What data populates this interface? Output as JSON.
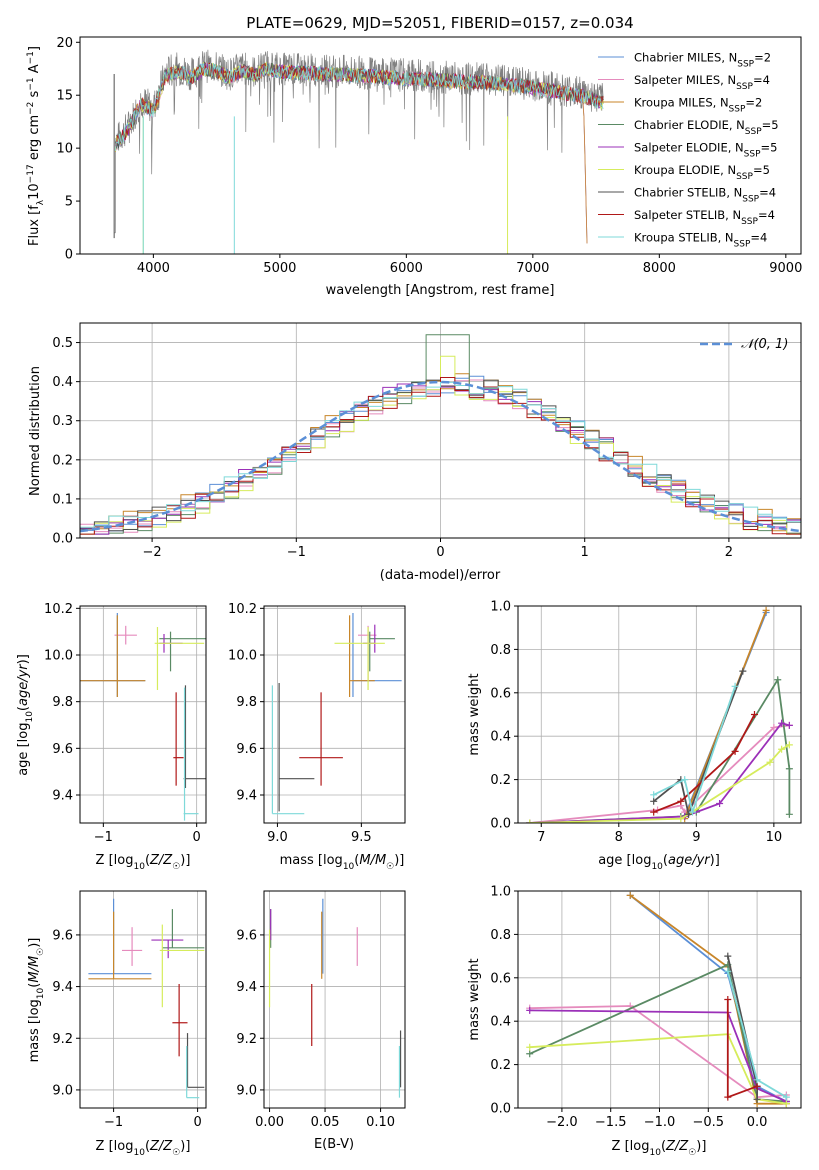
{
  "figure": {
    "title": "PLATE=0629, MJD=52051, FIBERID=0157, z=0.034"
  },
  "colors": {
    "Chabrier MILES": "#5b8fd6",
    "Salpeter MILES": "#e58bbd",
    "Kroupa MILES": "#c8862a",
    "Chabrier ELODIE": "#5a8a64",
    "Salpeter ELODIE": "#9b30b8",
    "Kroupa ELODIE": "#d6ec5c",
    "Chabrier STELIB": "#505050",
    "Salpeter STELIB": "#b01818",
    "Kroupa STELIB": "#7fd9d9"
  },
  "chart_data": [
    {
      "id": "spectrum",
      "type": "line",
      "title": "PLATE=0629, MJD=52051, FIBERID=0157, z=0.034",
      "xlabel": "wavelength [Angstrom, rest frame]",
      "ylabel": "Flux [f_λ 10^-17 erg cm^-2 s^-1 A^-1]",
      "xlim": [
        3420,
        9120
      ],
      "ylim": [
        0,
        20.5
      ],
      "xticks": [
        4000,
        5000,
        6000,
        7000,
        8000,
        9000
      ],
      "yticks": [
        0,
        5,
        10,
        15,
        20
      ],
      "grid": false,
      "legend": "right",
      "legend_entries": [
        "Chabrier MILES, N_SSP=2",
        "Salpeter MILES, N_SSP=4",
        "Kroupa MILES, N_SSP=2",
        "Chabrier ELODIE, N_SSP=5",
        "Salpeter ELODIE, N_SSP=5",
        "Kroupa ELODIE, N_SSP=5",
        "Chabrier STELIB, N_SSP=4",
        "Salpeter STELIB, N_SSP=4",
        "Kroupa STELIB, N_SSP=4"
      ],
      "data_continuum": {
        "x": [
          3690,
          3800,
          3900,
          4000,
          4100,
          4200,
          4300,
          4400,
          4500,
          4600,
          4700,
          4800,
          4900,
          5000,
          5200,
          5400,
          5600,
          5800,
          6000,
          6200,
          6400,
          6600,
          6800,
          7000,
          7200,
          7400,
          7550,
          7600
        ],
        "y": [
          10.5,
          12.0,
          14.5,
          13.8,
          17.2,
          17.5,
          17.0,
          17.8,
          17.6,
          17.0,
          17.6,
          17.2,
          17.8,
          17.5,
          17.4,
          17.3,
          17.2,
          17.0,
          16.9,
          16.8,
          16.6,
          16.5,
          16.3,
          16.0,
          15.6,
          15.2,
          14.6,
          14.0
        ]
      },
      "model_cutoff": {
        "x": [
          7400,
          7430
        ],
        "y": [
          15.0,
          0
        ]
      }
    },
    {
      "id": "residual-histogram",
      "type": "area",
      "xlabel": "(data-model)/error",
      "ylabel": "Normed distribution",
      "xlim": [
        -2.5,
        2.5
      ],
      "ylim": [
        0,
        0.55
      ],
      "xticks": [
        -2,
        -1,
        0,
        1,
        2
      ],
      "yticks": [
        0.0,
        0.1,
        0.2,
        0.3,
        0.4,
        0.5
      ],
      "grid": true,
      "legend": "top-right",
      "legend_entries": [
        "𝒩(0, 1)"
      ],
      "bin_width": 0.1,
      "bin_start": -2.5,
      "histograms": [
        {
          "series": "Chabrier MILES",
          "offset": 0.004
        },
        {
          "series": "Salpeter MILES",
          "offset": -0.006
        },
        {
          "series": "Kroupa MILES",
          "offset": 0.008
        },
        {
          "series": "Chabrier ELODIE",
          "offset": -0.003
        },
        {
          "series": "Salpeter ELODIE",
          "offset": 0.006
        },
        {
          "series": "Kroupa ELODIE",
          "offset": -0.008
        },
        {
          "series": "Chabrier STELIB",
          "offset": 0.002
        },
        {
          "series": "Salpeter STELIB",
          "offset": -0.004
        },
        {
          "series": "Kroupa STELIB",
          "offset": 0.005
        }
      ],
      "gaussian": {
        "mean": 0,
        "sigma": 1
      }
    },
    {
      "id": "age-vs-Z",
      "type": "scatter",
      "xlabel": "Z [log10(Z/Z☉)]",
      "ylabel": "age [log10(age/yr)]",
      "xlim": [
        -1.25,
        0.1
      ],
      "ylim": [
        9.28,
        10.21
      ],
      "xticks": [
        -1,
        0
      ],
      "yticks": [
        9.4,
        9.6,
        9.8,
        10.0,
        10.2
      ],
      "grid": true,
      "points": [
        {
          "series": "Chabrier MILES",
          "x": -0.85,
          "y": 9.89,
          "xerr": [
            0.45,
            0.3
          ],
          "yerr": [
            0.07,
            0.29
          ]
        },
        {
          "series": "Salpeter MILES",
          "x": -0.76,
          "y": 10.085,
          "xerr": [
            0.12,
            0.12
          ],
          "yerr": [
            0.04,
            0.04
          ]
        },
        {
          "series": "Kroupa MILES",
          "x": -0.85,
          "y": 9.89,
          "xerr": [
            0.45,
            0.3
          ],
          "yerr": [
            0.07,
            0.28
          ]
        },
        {
          "series": "Chabrier ELODIE",
          "x": -0.28,
          "y": 10.07,
          "xerr": [
            0.12,
            0.38
          ],
          "yerr": [
            0.14,
            0.03
          ]
        },
        {
          "series": "Salpeter ELODIE",
          "x": -0.35,
          "y": 10.05,
          "xerr": [
            0.05,
            0.2
          ],
          "yerr": [
            0.04,
            0.04
          ]
        },
        {
          "series": "Kroupa ELODIE",
          "x": -0.42,
          "y": 10.05,
          "xerr": [
            0.03,
            0.5
          ],
          "yerr": [
            0.2,
            0.07
          ]
        },
        {
          "series": "Chabrier STELIB",
          "x": -0.12,
          "y": 9.47,
          "xerr": [
            0.02,
            0.28
          ],
          "yerr": [
            0.04,
            0.4
          ]
        },
        {
          "series": "Salpeter STELIB",
          "x": -0.22,
          "y": 9.56,
          "xerr": [
            0.03,
            0.08
          ],
          "yerr": [
            0.12,
            0.28
          ]
        },
        {
          "series": "Kroupa STELIB",
          "x": -0.13,
          "y": 9.32,
          "xerr": [
            0.01,
            0.15
          ],
          "yerr": [
            0.03,
            0.54
          ]
        }
      ]
    },
    {
      "id": "age-vs-mass",
      "type": "scatter",
      "xlabel": "mass [log10(M/M☉)]",
      "ylabel": "",
      "xlim": [
        8.92,
        9.76
      ],
      "ylim": [
        9.28,
        10.21
      ],
      "xticks": [
        9.0,
        9.5
      ],
      "yticks": [
        9.4,
        9.6,
        9.8,
        10.0,
        10.2
      ],
      "grid": true,
      "points": [
        {
          "series": "Chabrier MILES",
          "x": 9.45,
          "y": 9.89,
          "xerr": [
            0.0,
            0.29
          ],
          "yerr": [
            0.07,
            0.29
          ]
        },
        {
          "series": "Salpeter MILES",
          "x": 9.54,
          "y": 10.085,
          "xerr": [
            0.06,
            0.05
          ],
          "yerr": [
            0.2,
            0.04
          ]
        },
        {
          "series": "Kroupa MILES",
          "x": 9.43,
          "y": 9.89,
          "xerr": [
            0.0,
            0.15
          ],
          "yerr": [
            0.07,
            0.28
          ]
        },
        {
          "series": "Chabrier ELODIE",
          "x": 9.55,
          "y": 10.07,
          "xerr": [
            0.0,
            0.15
          ],
          "yerr": [
            0.14,
            0.03
          ]
        },
        {
          "series": "Salpeter ELODIE",
          "x": 9.58,
          "y": 10.05,
          "xerr": [
            0.07,
            0.0
          ],
          "yerr": [
            0.04,
            0.08
          ]
        },
        {
          "series": "Kroupa ELODIE",
          "x": 9.54,
          "y": 10.05,
          "xerr": [
            0.2,
            0.1
          ],
          "yerr": [
            0.2,
            0.07
          ]
        },
        {
          "series": "Chabrier STELIB",
          "x": 9.01,
          "y": 9.47,
          "xerr": [
            0.0,
            0.21
          ],
          "yerr": [
            0.14,
            0.41
          ]
        },
        {
          "series": "Salpeter STELIB",
          "x": 9.26,
          "y": 9.56,
          "xerr": [
            0.13,
            0.13
          ],
          "yerr": [
            0.12,
            0.28
          ]
        },
        {
          "series": "Kroupa STELIB",
          "x": 8.97,
          "y": 9.32,
          "xerr": [
            0.0,
            0.19
          ],
          "yerr": [
            0.0,
            0.55
          ]
        }
      ]
    },
    {
      "id": "massweight-vs-age",
      "type": "line",
      "xlabel": "age [log10(age/yr)]",
      "ylabel": "mass weight",
      "xlim": [
        6.7,
        10.35
      ],
      "ylim": [
        0,
        1.0
      ],
      "xticks": [
        7,
        8,
        9,
        10
      ],
      "yticks": [
        0.0,
        0.2,
        0.4,
        0.6,
        0.8,
        1.0
      ],
      "grid": true,
      "series": [
        {
          "name": "Chabrier MILES",
          "x": [
            8.85,
            9.9
          ],
          "y": [
            0.03,
            0.97
          ]
        },
        {
          "name": "Salpeter MILES",
          "x": [
            6.85,
            8.5,
            8.8,
            8.85,
            10.0,
            10.2
          ],
          "y": [
            0.0,
            0.06,
            0.08,
            0.05,
            0.44,
            0.45
          ]
        },
        {
          "name": "Kroupa MILES",
          "x": [
            8.85,
            9.9
          ],
          "y": [
            0.02,
            0.98
          ]
        },
        {
          "name": "Chabrier ELODIE",
          "x": [
            6.85,
            8.8,
            9.0,
            10.05,
            10.2,
            10.2
          ],
          "y": [
            0.0,
            0.03,
            0.05,
            0.66,
            0.25,
            0.04
          ]
        },
        {
          "name": "Salpeter ELODIE",
          "x": [
            6.85,
            8.85,
            9.3,
            10.1,
            10.2
          ],
          "y": [
            0.0,
            0.03,
            0.09,
            0.46,
            0.45
          ]
        },
        {
          "name": "Kroupa ELODIE",
          "x": [
            6.85,
            8.8,
            8.9,
            9.95,
            10.1,
            10.2
          ],
          "y": [
            0.0,
            0.02,
            0.04,
            0.28,
            0.34,
            0.36
          ]
        },
        {
          "name": "Chabrier STELIB",
          "x": [
            8.45,
            8.8,
            8.9,
            9.6
          ],
          "y": [
            0.1,
            0.2,
            0.04,
            0.7
          ]
        },
        {
          "name": "Salpeter STELIB",
          "x": [
            8.45,
            8.8,
            9.5,
            9.75
          ],
          "y": [
            0.05,
            0.1,
            0.33,
            0.5
          ]
        },
        {
          "name": "Kroupa STELIB",
          "x": [
            8.45,
            8.85,
            8.95,
            9.5
          ],
          "y": [
            0.13,
            0.2,
            0.05,
            0.63
          ]
        }
      ]
    },
    {
      "id": "mass-vs-Z",
      "type": "scatter",
      "xlabel": "Z [log10(Z/Z☉)]",
      "ylabel": "mass [log10(M/M☉)]",
      "xlim": [
        -1.4,
        0.1
      ],
      "ylim": [
        8.93,
        9.77
      ],
      "xticks": [
        -1,
        0
      ],
      "yticks": [
        9.0,
        9.2,
        9.4,
        9.6
      ],
      "grid": true,
      "points": [
        {
          "series": "Chabrier MILES",
          "x": -1.0,
          "y": 9.45,
          "xerr": [
            0.3,
            0.45
          ],
          "yerr": [
            0.0,
            0.29
          ]
        },
        {
          "series": "Salpeter MILES",
          "x": -0.78,
          "y": 9.54,
          "xerr": [
            0.12,
            0.12
          ],
          "yerr": [
            0.06,
            0.09
          ]
        },
        {
          "series": "Kroupa MILES",
          "x": -1.0,
          "y": 9.43,
          "xerr": [
            0.3,
            0.45
          ],
          "yerr": [
            0.0,
            0.26
          ]
        },
        {
          "series": "Chabrier ELODIE",
          "x": -0.3,
          "y": 9.55,
          "xerr": [
            0.12,
            0.38
          ],
          "yerr": [
            0.0,
            0.15
          ]
        },
        {
          "series": "Salpeter ELODIE",
          "x": -0.35,
          "y": 9.58,
          "xerr": [
            0.2,
            0.18
          ],
          "yerr": [
            0.07,
            0.0
          ]
        },
        {
          "series": "Kroupa ELODIE",
          "x": -0.42,
          "y": 9.54,
          "xerr": [
            0.03,
            0.5
          ],
          "yerr": [
            0.22,
            0.1
          ]
        },
        {
          "series": "Chabrier STELIB",
          "x": -0.12,
          "y": 9.01,
          "xerr": [
            0.0,
            0.2
          ],
          "yerr": [
            0.0,
            0.21
          ]
        },
        {
          "series": "Salpeter STELIB",
          "x": -0.22,
          "y": 9.26,
          "xerr": [
            0.08,
            0.1
          ],
          "yerr": [
            0.13,
            0.15
          ]
        },
        {
          "series": "Kroupa STELIB",
          "x": -0.13,
          "y": 8.97,
          "xerr": [
            0.0,
            0.15
          ],
          "yerr": [
            0.0,
            0.2
          ]
        }
      ]
    },
    {
      "id": "mass-vs-EBV",
      "type": "scatter",
      "xlabel": "E(B-V)",
      "ylabel": "",
      "xlim": [
        -0.005,
        0.122
      ],
      "ylim": [
        8.93,
        9.77
      ],
      "xticks": [
        0.0,
        0.05,
        0.1
      ],
      "yticks": [
        9.0,
        9.2,
        9.4,
        9.6
      ],
      "grid": true,
      "points": [
        {
          "series": "Chabrier MILES",
          "x": 0.048,
          "y": 9.45,
          "yerr": [
            0.0,
            0.29
          ]
        },
        {
          "series": "Salpeter MILES",
          "x": 0.079,
          "y": 9.54,
          "yerr": [
            0.06,
            0.09
          ]
        },
        {
          "series": "Kroupa MILES",
          "x": 0.047,
          "y": 9.43,
          "yerr": [
            0.0,
            0.26
          ]
        },
        {
          "series": "Chabrier ELODIE",
          "x": 0.001,
          "y": 9.55,
          "yerr": [
            0.0,
            0.15
          ]
        },
        {
          "series": "Salpeter ELODIE",
          "x": 0.001,
          "y": 9.58,
          "yerr": [
            0.0,
            0.12
          ]
        },
        {
          "series": "Kroupa ELODIE",
          "x": 0.0,
          "y": 9.54,
          "yerr": [
            0.22,
            0.08
          ]
        },
        {
          "series": "Chabrier STELIB",
          "x": 0.118,
          "y": 9.01,
          "yerr": [
            0.0,
            0.22
          ]
        },
        {
          "series": "Salpeter STELIB",
          "x": 0.038,
          "y": 9.26,
          "yerr": [
            0.09,
            0.15
          ]
        },
        {
          "series": "Kroupa STELIB",
          "x": 0.117,
          "y": 8.97,
          "yerr": [
            0.0,
            0.2
          ]
        }
      ]
    },
    {
      "id": "massweight-vs-Z",
      "type": "line",
      "xlabel": "Z [log10(Z/Z☉)]",
      "ylabel": "mass weight",
      "xlim": [
        -2.45,
        0.45
      ],
      "ylim": [
        0,
        1.0
      ],
      "xticks": [
        -2.0,
        -1.5,
        -1.0,
        -0.5,
        0.0
      ],
      "yticks": [
        0.0,
        0.2,
        0.4,
        0.6,
        0.8,
        1.0
      ],
      "grid": true,
      "series": [
        {
          "name": "Chabrier MILES",
          "x": [
            -1.3,
            -0.3,
            0.0,
            0.3
          ],
          "y": [
            0.98,
            0.62,
            0.1,
            0.03
          ]
        },
        {
          "name": "Salpeter MILES",
          "x": [
            -2.33,
            -1.3,
            0.0,
            0.3,
            0.3
          ],
          "y": [
            0.46,
            0.47,
            0.05,
            0.06,
            0.02
          ]
        },
        {
          "name": "Kroupa MILES",
          "x": [
            -1.3,
            -0.3,
            0.0,
            0.3
          ],
          "y": [
            0.98,
            0.65,
            0.02,
            0.02
          ]
        },
        {
          "name": "Chabrier ELODIE",
          "x": [
            -2.33,
            -0.3,
            0.0,
            0.3
          ],
          "y": [
            0.25,
            0.66,
            0.04,
            0.03
          ]
        },
        {
          "name": "Salpeter ELODIE",
          "x": [
            -2.33,
            -0.3,
            0.0,
            0.3
          ],
          "y": [
            0.45,
            0.44,
            0.09,
            0.03
          ]
        },
        {
          "name": "Kroupa ELODIE",
          "x": [
            -2.33,
            -0.3,
            0.0,
            0.3
          ],
          "y": [
            0.28,
            0.34,
            0.04,
            0.02
          ]
        },
        {
          "name": "Chabrier STELIB",
          "x": [
            -0.3,
            0.0,
            0.0
          ],
          "y": [
            0.7,
            0.1,
            0.04
          ]
        },
        {
          "name": "Salpeter STELIB",
          "x": [
            -0.3,
            -0.3,
            0.0
          ],
          "y": [
            0.5,
            0.05,
            0.1
          ]
        },
        {
          "name": "Kroupa STELIB",
          "x": [
            -0.3,
            0.0,
            0.3
          ],
          "y": [
            0.63,
            0.13,
            0.05
          ]
        }
      ]
    }
  ]
}
